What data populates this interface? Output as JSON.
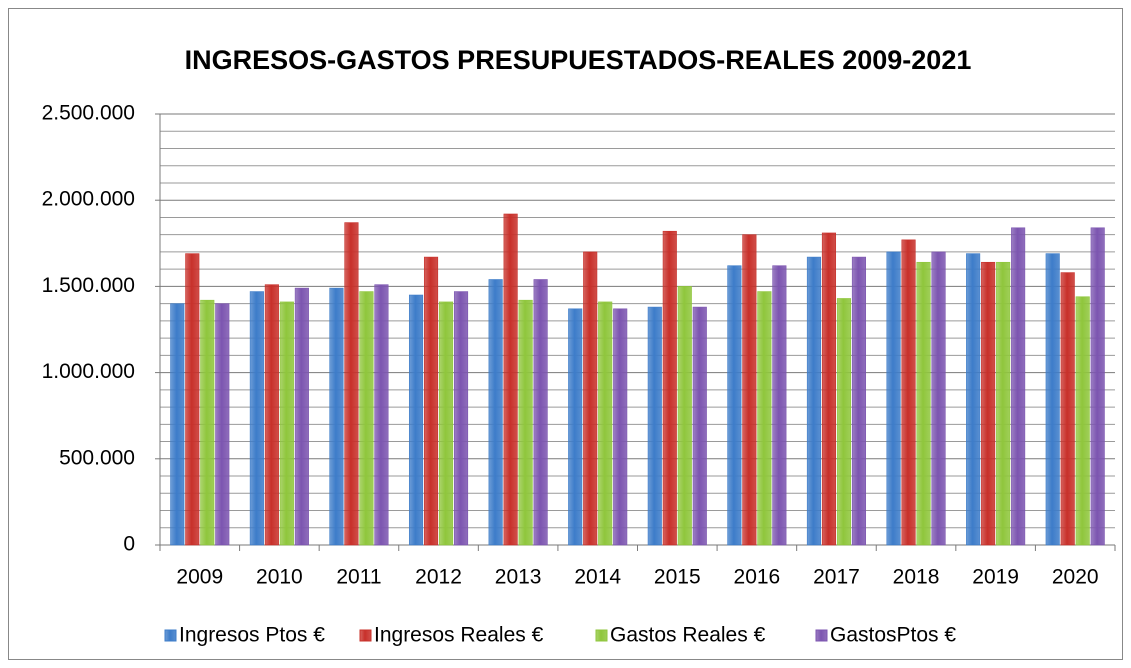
{
  "chart_data": {
    "type": "bar",
    "title": "INGRESOS-GASTOS PRESUPUESTADOS-REALES 2009-2021",
    "categories": [
      "2009",
      "2010",
      "2011",
      "2012",
      "2013",
      "2014",
      "2015",
      "2016",
      "2017",
      "2018",
      "2019",
      "2020"
    ],
    "series": [
      {
        "name": "Ingresos Ptos €",
        "color": "#3d7cc9",
        "values": [
          1400000,
          1470000,
          1490000,
          1450000,
          1540000,
          1370000,
          1380000,
          1620000,
          1670000,
          1700000,
          1690000,
          1690000
        ]
      },
      {
        "name": "Ingresos Reales €",
        "color": "#c8302a",
        "values": [
          1690000,
          1510000,
          1870000,
          1670000,
          1920000,
          1700000,
          1820000,
          1800000,
          1810000,
          1770000,
          1640000,
          1580000
        ]
      },
      {
        "name": "Gastos Reales €",
        "color": "#8fc63c",
        "values": [
          1420000,
          1410000,
          1470000,
          1410000,
          1420000,
          1410000,
          1500000,
          1470000,
          1430000,
          1640000,
          1640000,
          1440000
        ]
      },
      {
        "name": "GastosPtos €",
        "color": "#7c55b0",
        "values": [
          1400000,
          1490000,
          1510000,
          1470000,
          1540000,
          1370000,
          1380000,
          1620000,
          1670000,
          1700000,
          1840000,
          1840000
        ]
      }
    ],
    "ylim": [
      0,
      2500000
    ],
    "yticks": [
      0,
      {
        "value": 500000,
        "label": "500.000"
      },
      {
        "value": 1000000,
        "label": "1.000.000"
      },
      {
        "value": 1500000,
        "label": "1.500.000"
      },
      {
        "value": 2000000,
        "label": "2.000.000"
      },
      {
        "value": 2500000,
        "label": "2.500.000"
      }
    ],
    "minor_yticks": [
      100000,
      200000,
      300000,
      400000,
      600000,
      700000,
      800000,
      900000,
      1100000,
      1200000,
      1300000,
      1400000,
      1600000,
      1700000,
      1800000,
      1900000,
      2100000,
      2200000,
      2300000,
      2400000
    ],
    "grid": true,
    "legend": "bottom"
  }
}
